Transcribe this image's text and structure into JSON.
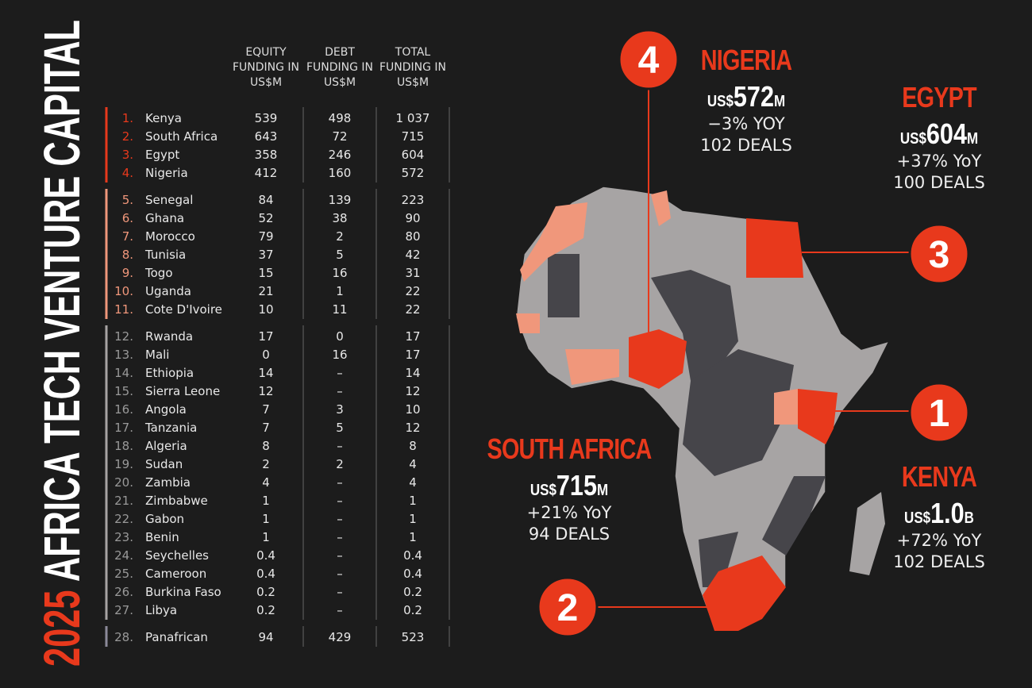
{
  "title": {
    "year": "2025",
    "text": "AFRICA TECH VENTURE CAPITAL"
  },
  "table": {
    "headers": [
      "EQUITY FUNDING IN US$M",
      "DEBT FUNDING IN US$M",
      "TOTAL FUNDING IN US$M"
    ],
    "groups": [
      [
        [
          "1.",
          "Kenya",
          "539",
          "498",
          "1 037"
        ],
        [
          "2.",
          "South Africa",
          "643",
          "72",
          "715"
        ],
        [
          "3.",
          "Egypt",
          "358",
          "246",
          "604"
        ],
        [
          "4.",
          "Nigeria",
          "412",
          "160",
          "572"
        ]
      ],
      [
        [
          "5.",
          "Senegal",
          "84",
          "139",
          "223"
        ],
        [
          "6.",
          "Ghana",
          "52",
          "38",
          "90"
        ],
        [
          "7.",
          "Morocco",
          "79",
          "2",
          "80"
        ],
        [
          "8.",
          "Tunisia",
          "37",
          "5",
          "42"
        ],
        [
          "9.",
          "Togo",
          "15",
          "16",
          "31"
        ],
        [
          "10.",
          "Uganda",
          "21",
          "1",
          "22"
        ],
        [
          "11.",
          "Cote D'Ivoire",
          "10",
          "11",
          "22"
        ]
      ],
      [
        [
          "12.",
          "Rwanda",
          "17",
          "0",
          "17"
        ],
        [
          "13.",
          "Mali",
          "0",
          "16",
          "17"
        ],
        [
          "14.",
          "Ethiopia",
          "14",
          "–",
          "14"
        ],
        [
          "15.",
          "Sierra Leone",
          "12",
          "–",
          "12"
        ],
        [
          "16.",
          "Angola",
          "7",
          "3",
          "10"
        ],
        [
          "17.",
          "Tanzania",
          "7",
          "5",
          "12"
        ],
        [
          "18.",
          "Algeria",
          "8",
          "–",
          "8"
        ],
        [
          "19.",
          "Sudan",
          "2",
          "2",
          "4"
        ],
        [
          "20.",
          "Zambia",
          "4",
          "–",
          "4"
        ],
        [
          "21.",
          "Zimbabwe",
          "1",
          "–",
          "1"
        ],
        [
          "22.",
          "Gabon",
          "1",
          "–",
          "1"
        ],
        [
          "23.",
          "Benin",
          "1",
          "–",
          "1"
        ],
        [
          "24.",
          "Seychelles",
          "0.4",
          "–",
          "0.4"
        ],
        [
          "25.",
          "Cameroon",
          "0.4",
          "–",
          "0.4"
        ],
        [
          "26.",
          "Burkina Faso",
          "0.2",
          "–",
          "0.2"
        ],
        [
          "27.",
          "Libya",
          "0.2",
          "–",
          "0.2"
        ]
      ],
      [
        [
          "28.",
          "Panafrican",
          "94",
          "429",
          "523"
        ]
      ]
    ]
  },
  "callouts": [
    {
      "number": "4",
      "name": "NIGERIA",
      "currency": "US$",
      "amount": "572",
      "unit": "M",
      "change": "−3% YOY",
      "deals": "102 DEALS"
    },
    {
      "number": "3",
      "name": "EGYPT",
      "currency": "US$",
      "amount": "604",
      "unit": "M",
      "change": "+37% YoY",
      "deals": "100 DEALS"
    },
    {
      "number": "2",
      "name": "SOUTH AFRICA",
      "currency": "US$",
      "amount": "715",
      "unit": "M",
      "change": "+21% YoY",
      "deals": "94 DEALS"
    },
    {
      "number": "1",
      "name": "KENYA",
      "currency": "US$",
      "amount": "1.0",
      "unit": "B",
      "change": "+72% YoY",
      "deals": "102 DEALS"
    }
  ]
}
